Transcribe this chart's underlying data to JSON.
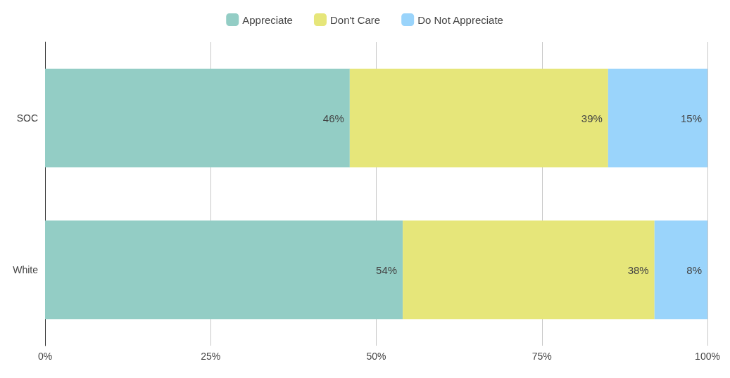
{
  "chart_data": {
    "type": "bar",
    "orientation": "horizontal",
    "stacked": true,
    "categories": [
      "SOC",
      "White"
    ],
    "series": [
      {
        "name": "Appreciate",
        "color": "#93cdc5",
        "values": [
          46,
          54
        ],
        "value_labels": [
          "46%",
          "54%"
        ]
      },
      {
        "name": "Don't Care",
        "color": "#e6e67a",
        "values": [
          39,
          38
        ],
        "value_labels": [
          "39%",
          "38%"
        ]
      },
      {
        "name": "Do Not Appreciate",
        "color": "#9ad4fb",
        "values": [
          15,
          8
        ],
        "value_labels": [
          "15%",
          "8%"
        ]
      }
    ],
    "xlim": [
      0,
      100
    ],
    "xticks": [
      {
        "value": 0,
        "label": "0%"
      },
      {
        "value": 25,
        "label": "25%"
      },
      {
        "value": 50,
        "label": "50%"
      },
      {
        "value": 75,
        "label": "75%"
      },
      {
        "value": 100,
        "label": "100%"
      }
    ],
    "grid": "x",
    "legend": "top"
  }
}
